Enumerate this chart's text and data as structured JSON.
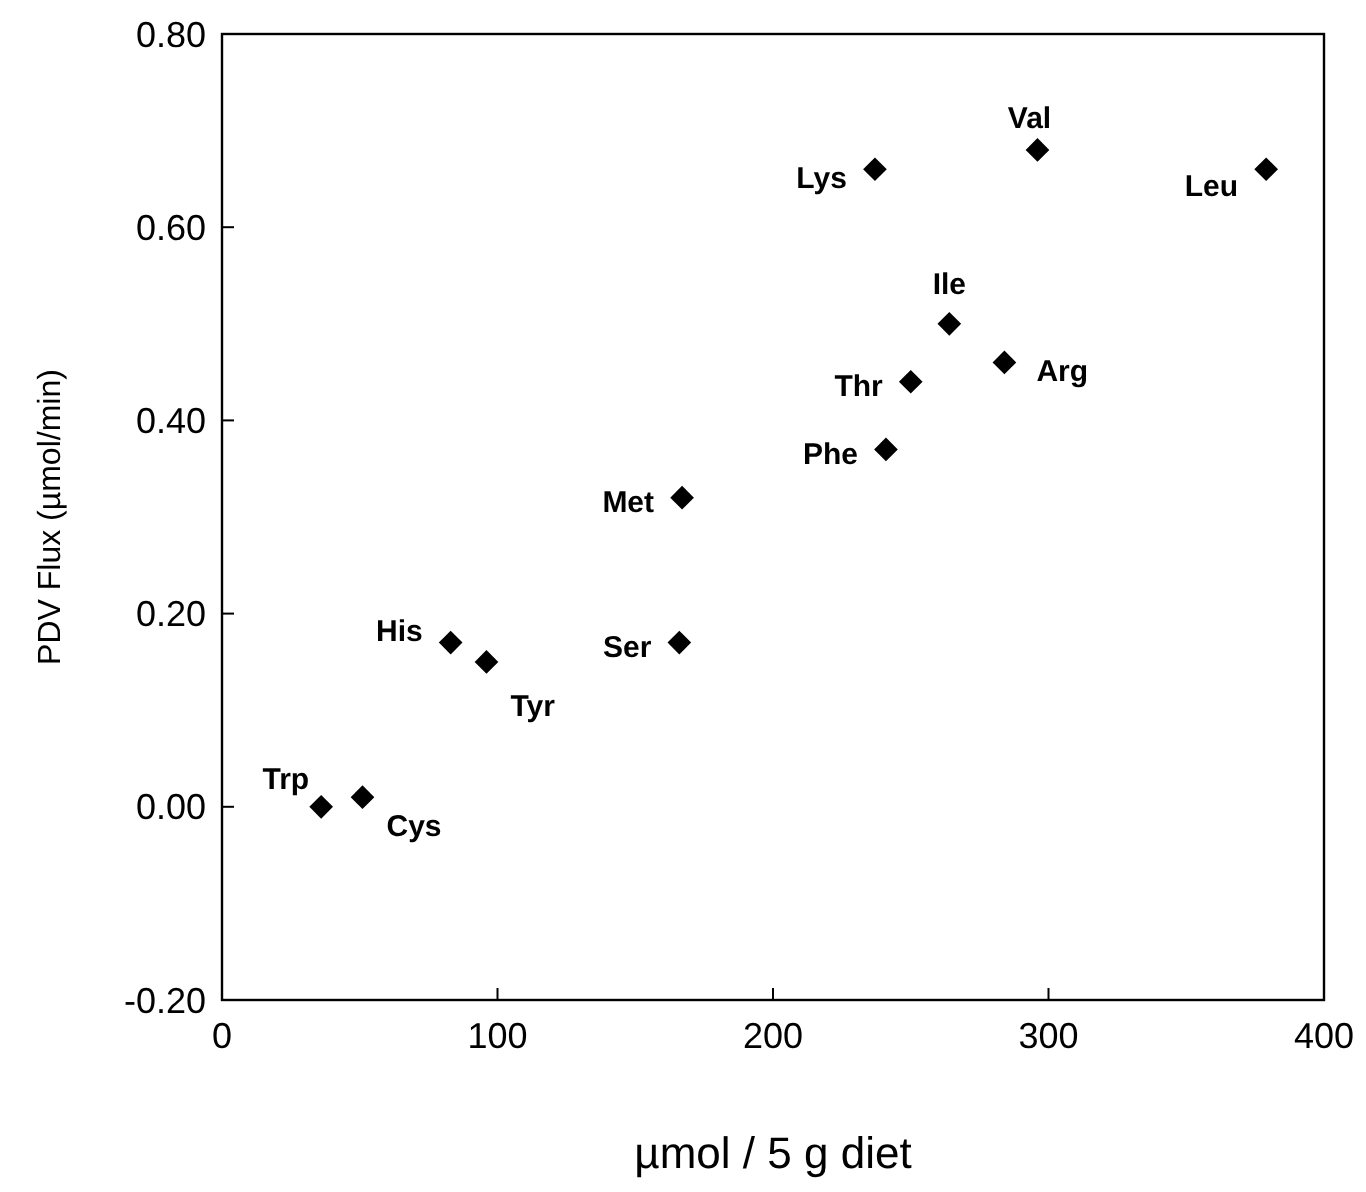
{
  "chart_data": {
    "type": "scatter",
    "xlabel": "µmol / 5 g diet",
    "ylabel": "PDV Flux (µmol/min)",
    "x": [
      36,
      51,
      83,
      96,
      166,
      167,
      241,
      250,
      264,
      284,
      237,
      296,
      379
    ],
    "values": [
      0,
      0.01,
      0.17,
      0.15,
      0.17,
      0.32,
      0.37,
      0.44,
      0.5,
      0.46,
      0.66,
      0.68,
      0.66
    ],
    "color": "#000000",
    "marker": "diamond",
    "xlim": [
      0,
      400
    ],
    "xticks": [
      0,
      100,
      200,
      300,
      400
    ],
    "ylim": [
      -0.2,
      0.8
    ],
    "yticks": [
      {
        "value": -0.2,
        "label": "-0.20"
      },
      {
        "value": 0,
        "label": "0.00"
      },
      {
        "value": 0.2,
        "label": "0.20"
      },
      {
        "value": 0.4,
        "label": "0.40"
      },
      {
        "value": 0.6,
        "label": "0.60"
      },
      {
        "value": 0.8,
        "label": "0.80"
      }
    ],
    "annotations": [
      {
        "text": "Trp",
        "x": 36,
        "y": 0
      },
      {
        "text": "Cys",
        "x": 51,
        "y": 0.01
      },
      {
        "text": "His",
        "x": 83,
        "y": 0.17
      },
      {
        "text": "Tyr",
        "x": 96,
        "y": 0.15
      },
      {
        "text": "Ser",
        "x": 166,
        "y": 0.17
      },
      {
        "text": "Met",
        "x": 167,
        "y": 0.32
      },
      {
        "text": "Phe",
        "x": 241,
        "y": 0.37
      },
      {
        "text": "Thr",
        "x": 250,
        "y": 0.44
      },
      {
        "text": "Ile",
        "x": 264,
        "y": 0.5
      },
      {
        "text": "Arg",
        "x": 284,
        "y": 0.46
      },
      {
        "text": "Lys",
        "x": 237,
        "y": 0.66
      },
      {
        "text": "Val",
        "x": 296,
        "y": 0.68
      },
      {
        "text": "Leu",
        "x": 379,
        "y": 0.66
      }
    ]
  }
}
